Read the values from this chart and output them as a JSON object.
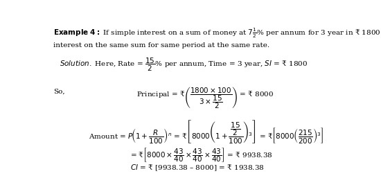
{
  "background_color": "#ffffff",
  "text_color": "#000000",
  "fig_width": 5.5,
  "fig_height": 2.8,
  "dpi": 100,
  "fs": 7.5
}
